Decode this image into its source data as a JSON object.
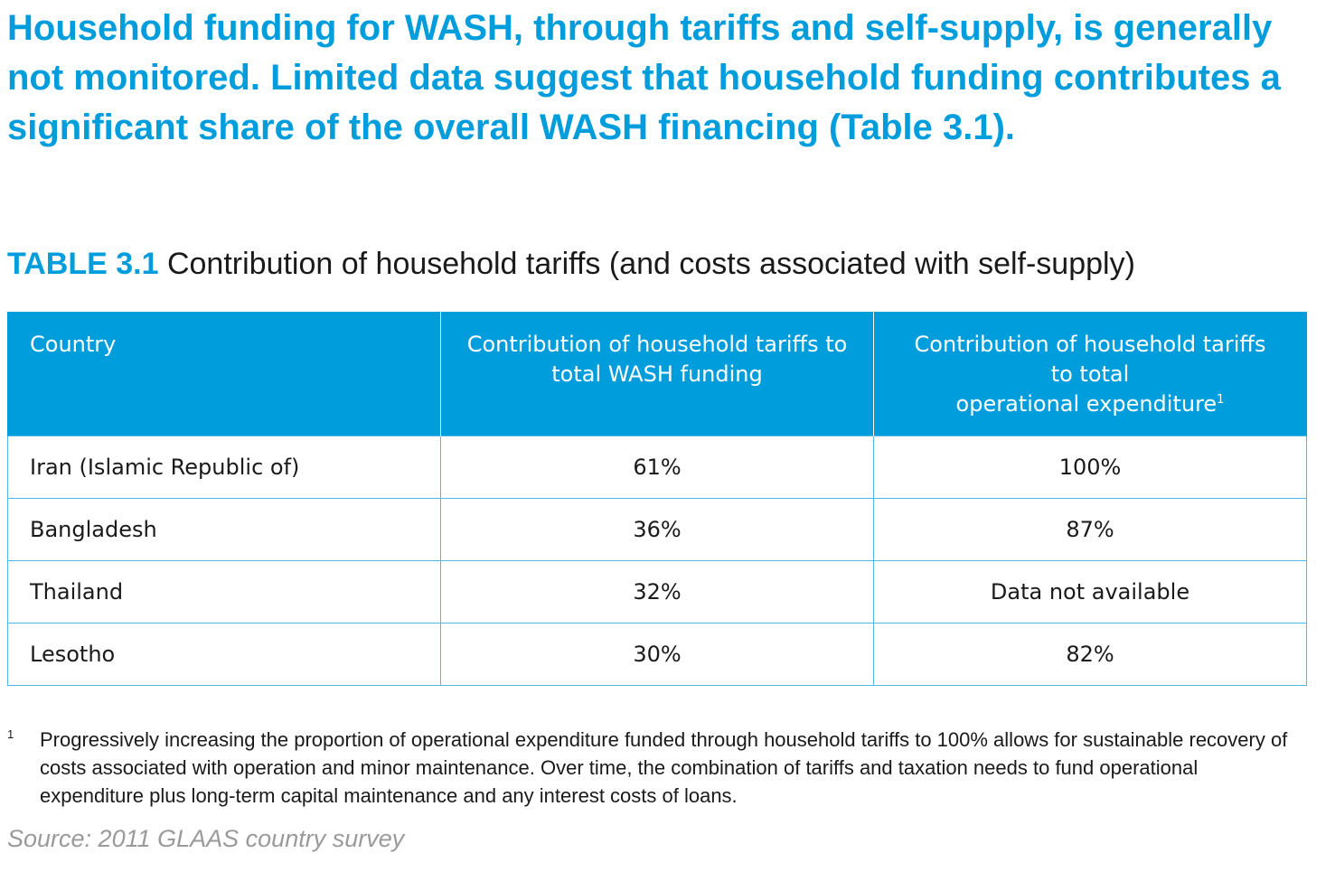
{
  "headline": "Household funding for WASH, through tariffs and self-supply, is generally not monitored. Limited data suggest that household funding contributes a significant share of the overall WASH financing (Table 3.1).",
  "table_caption": {
    "label": "TABLE 3.1",
    "title": "Contribution of household tariffs (and costs associated with self-supply)"
  },
  "table": {
    "headers": {
      "country": "Country",
      "total_funding": "Contribution of household tariffs to total WASH funding",
      "opex_line1": "Contribution of household tariffs",
      "opex_line2": "to total",
      "opex_line3": "operational expenditure",
      "opex_marker": "1"
    },
    "rows": [
      {
        "country": "Iran (Islamic Republic of)",
        "total_funding": "61%",
        "opex": "100%"
      },
      {
        "country": "Bangladesh",
        "total_funding": "36%",
        "opex": "87%"
      },
      {
        "country": "Thailand",
        "total_funding": "32%",
        "opex": "Data not available"
      },
      {
        "country": "Lesotho",
        "total_funding": "30%",
        "opex": "82%"
      }
    ]
  },
  "footnote": {
    "marker": "1",
    "text": "Progressively increasing the proportion of operational expenditure funded through household tariffs to 100% allows for sustainable recovery of costs associated with operation and minor maintenance. Over time, the combination of tariffs and taxation needs to fund operational expenditure plus long-term capital maintenance and any interest costs of loans."
  },
  "source": "Source: 2011 GLAAS country survey",
  "colors": {
    "accent": "#009ddc",
    "table_border": "#4fb8e6",
    "source_text": "#9a9a9a"
  }
}
